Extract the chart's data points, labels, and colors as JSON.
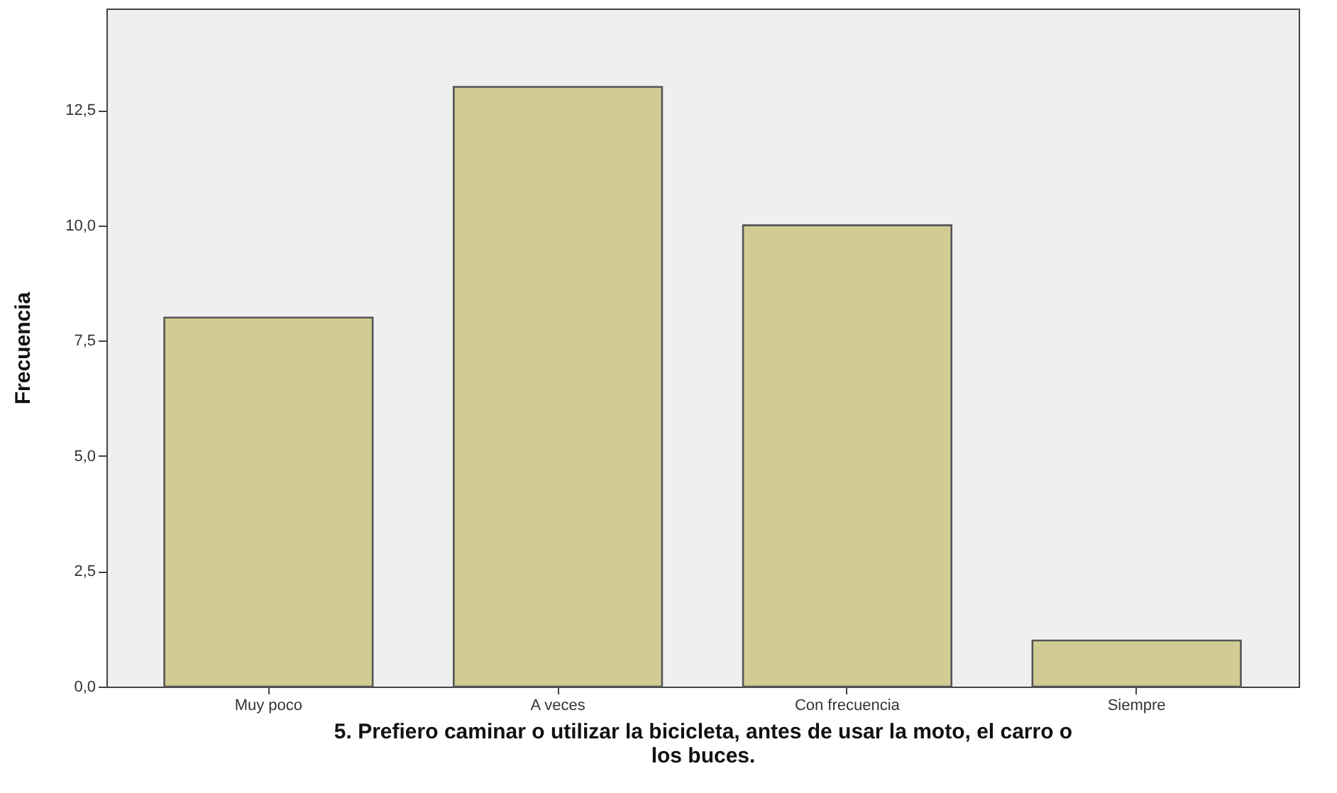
{
  "chart_data": {
    "type": "bar",
    "categories": [
      "Muy poco",
      "A veces",
      "Con frecuencia",
      "Siempre"
    ],
    "values": [
      8,
      13,
      10,
      1
    ],
    "color": "#d1cc94",
    "xlabel": "5. Prefiero caminar o utilizar la bicicleta, antes de usar la moto, el carro o los buces.",
    "ylabel": "Frecuencia",
    "ylim": [
      0,
      14.7
    ],
    "yticks": [
      {
        "value": 0,
        "label": "0,0"
      },
      {
        "value": 2.5,
        "label": "2,5"
      },
      {
        "value": 5,
        "label": "5,0"
      },
      {
        "value": 7.5,
        "label": "7,5"
      },
      {
        "value": 10,
        "label": "10,0"
      },
      {
        "value": 12.5,
        "label": "12,5"
      }
    ],
    "grid": false
  }
}
